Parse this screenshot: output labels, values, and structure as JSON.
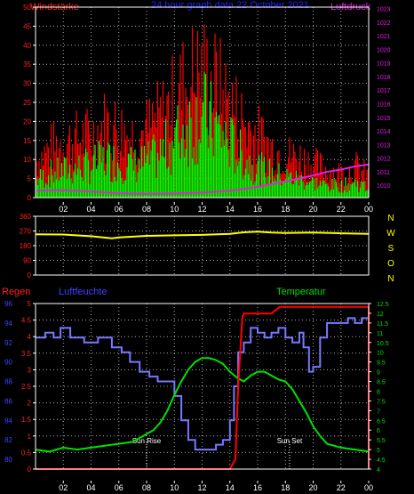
{
  "header": {
    "left_label": "Windstärke",
    "center_label": "24 hour graph data  22 October 2021",
    "right_label": "Luftdruck"
  },
  "colors": {
    "bg": "#000000",
    "axis": "#ffffff",
    "grid": "#d8d8d8",
    "gust": "#ff0000",
    "wind": "#00ff00",
    "pressure": "#e020e0",
    "direction": "#ffff00",
    "rain": "#ff0000",
    "humidity": "#7878ff",
    "temperature": "#00e000",
    "label_red": "#ff2020",
    "label_blue": "#4040ff",
    "label_green": "#00e000"
  },
  "x_tick_labels": [
    "02",
    "04",
    "06",
    "08",
    "10",
    "12",
    "14",
    "16",
    "18",
    "20",
    "22",
    "00"
  ],
  "chart_data": [
    {
      "id": "wind",
      "type": "bar",
      "title": "24 hour graph data  22 October 2021",
      "ylabel_left": "Windstärke",
      "ylabel_right": "Luftdruck",
      "ylim_left": [
        0,
        50
      ],
      "yticks_left": [
        0,
        5,
        10,
        15,
        20,
        25,
        30,
        35,
        40,
        45,
        50
      ],
      "ylim_right": [
        1009,
        1083
      ],
      "yticks_right": [
        1010,
        1011,
        1012,
        1013,
        1014,
        1015,
        1016,
        1017,
        1018,
        1019,
        1020,
        1021,
        1022,
        1023
      ],
      "xlim_hours": [
        0,
        24
      ],
      "grid": true,
      "series": [
        {
          "name": "gust",
          "type": "bar",
          "x": [
            0,
            1,
            2,
            3,
            4,
            5,
            6,
            7,
            8,
            9,
            10,
            11,
            12,
            13,
            14,
            15,
            16,
            17,
            18,
            19,
            20,
            21,
            22,
            23,
            24
          ],
          "values": [
            12,
            16,
            18,
            19,
            20,
            24,
            22,
            20,
            22,
            26,
            32,
            38,
            40,
            36,
            30,
            24,
            20,
            16,
            14,
            13,
            11,
            9,
            8,
            10,
            7
          ]
        },
        {
          "name": "wind",
          "type": "bar",
          "x": [
            0,
            1,
            2,
            3,
            4,
            5,
            6,
            7,
            8,
            9,
            10,
            11,
            12,
            13,
            14,
            15,
            16,
            17,
            18,
            19,
            20,
            21,
            22,
            23,
            24
          ],
          "values": [
            6,
            8,
            9,
            10,
            11,
            13,
            12,
            11,
            12,
            15,
            20,
            25,
            28,
            23,
            18,
            13,
            10,
            8,
            7,
            6,
            5,
            4,
            4,
            5,
            3
          ]
        },
        {
          "name": "Luftdruck",
          "type": "line",
          "axis": "right",
          "x": [
            0,
            2,
            4,
            6,
            8,
            10,
            12,
            14,
            16,
            18,
            20,
            21,
            22,
            23,
            24
          ],
          "values": [
            1011.7,
            1011.9,
            1011.3,
            1010.7,
            1010.5,
            1010.6,
            1010.9,
            1011.6,
            1013.2,
            1015.3,
            1017.6,
            1019.0,
            1019.9,
            1021.1,
            1021.9
          ]
        }
      ]
    },
    {
      "id": "direction",
      "type": "line",
      "ylim": [
        0,
        360
      ],
      "yticks": [
        0,
        90,
        180,
        270,
        360
      ],
      "compass_labels": [
        "N",
        "W",
        "S",
        "O",
        "N"
      ],
      "series": [
        {
          "name": "direction",
          "x": [
            0,
            2,
            4,
            5.5,
            6,
            8,
            10,
            12,
            14,
            15,
            16,
            17,
            18,
            20,
            22,
            24
          ],
          "values": [
            250,
            248,
            238,
            225,
            230,
            240,
            243,
            246,
            252,
            262,
            266,
            260,
            258,
            260,
            256,
            252
          ]
        }
      ]
    },
    {
      "id": "climate",
      "type": "line",
      "label_rain": "Regen",
      "label_humidity": "Luftfeuchte",
      "label_temperature": "Temperatur",
      "ylim_rain": [
        0,
        5
      ],
      "yticks_rain": [
        0,
        0.5,
        1,
        1.5,
        2,
        2.5,
        3,
        3.5,
        4,
        4.5,
        5
      ],
      "ylim_humidity": [
        79,
        96
      ],
      "yticks_humidity": [
        80,
        82,
        84,
        86,
        88,
        90,
        92,
        94,
        96
      ],
      "ylim_temperature": [
        4,
        12.5
      ],
      "yticks_temperature": [
        4,
        4.5,
        5,
        5.5,
        6,
        6.5,
        7,
        7.5,
        8,
        8.5,
        9,
        9.5,
        10,
        10.5,
        11,
        11.5,
        12,
        12.5
      ],
      "annotations": [
        {
          "text": "Sun Rise",
          "x": 8.0
        },
        {
          "text": "Sun Set",
          "x": 18.3
        }
      ],
      "series": [
        {
          "name": "rain",
          "axis": "rain",
          "x": [
            0,
            14,
            14.4,
            14.6,
            14.9,
            15,
            17,
            17.6,
            23,
            24,
            24
          ],
          "values": [
            0,
            0,
            0.3,
            2.5,
            4.6,
            4.7,
            4.7,
            4.9,
            4.9,
            4.9,
            0
          ]
        },
        {
          "name": "humidity",
          "axis": "humidity",
          "x": [
            0,
            0.7,
            1.3,
            1.8,
            2.5,
            3.5,
            4.5,
            5.5,
            6.2,
            6.8,
            7.5,
            8.2,
            8.8,
            9.5,
            10,
            10.5,
            11,
            11.5,
            12,
            12.5,
            13,
            13.5,
            14,
            14.3,
            14.6,
            15,
            15.5,
            16,
            16.5,
            17,
            17.5,
            18,
            18.5,
            19,
            19.3,
            19.7,
            20,
            20.5,
            21,
            22,
            22.5,
            23,
            23.5,
            24
          ],
          "values": [
            92.5,
            93,
            92.5,
            93.5,
            92.5,
            92,
            92.5,
            91.5,
            91,
            90,
            89,
            88.5,
            88,
            88,
            86.5,
            84,
            82,
            81,
            81,
            81,
            81.5,
            82,
            84,
            87.5,
            91,
            92,
            93.5,
            93,
            92.5,
            93,
            93.5,
            92.5,
            92,
            93,
            91.5,
            89,
            89.5,
            92.5,
            94,
            94,
            94.5,
            94,
            94.5,
            94
          ]
        },
        {
          "name": "temperature",
          "axis": "temperature",
          "x": [
            0,
            1,
            2,
            3,
            4,
            5,
            6,
            7,
            8,
            8.5,
            9,
            9.5,
            10,
            10.5,
            11,
            11.5,
            12,
            12.5,
            13,
            13.5,
            14,
            14.5,
            15,
            15.5,
            16,
            16.5,
            17,
            17.5,
            18,
            18.5,
            19,
            19.5,
            20,
            20.5,
            21,
            22,
            23,
            24
          ],
          "values": [
            5.0,
            4.9,
            5.1,
            5.0,
            5.1,
            5.2,
            5.3,
            5.4,
            5.8,
            6.0,
            6.4,
            7.0,
            7.8,
            8.5,
            9.1,
            9.5,
            9.7,
            9.7,
            9.6,
            9.4,
            9.0,
            8.7,
            8.5,
            8.8,
            9.0,
            9.0,
            8.8,
            8.6,
            8.5,
            8.1,
            7.5,
            6.9,
            6.2,
            5.7,
            5.3,
            5.1,
            5.0,
            4.9
          ]
        }
      ]
    }
  ]
}
